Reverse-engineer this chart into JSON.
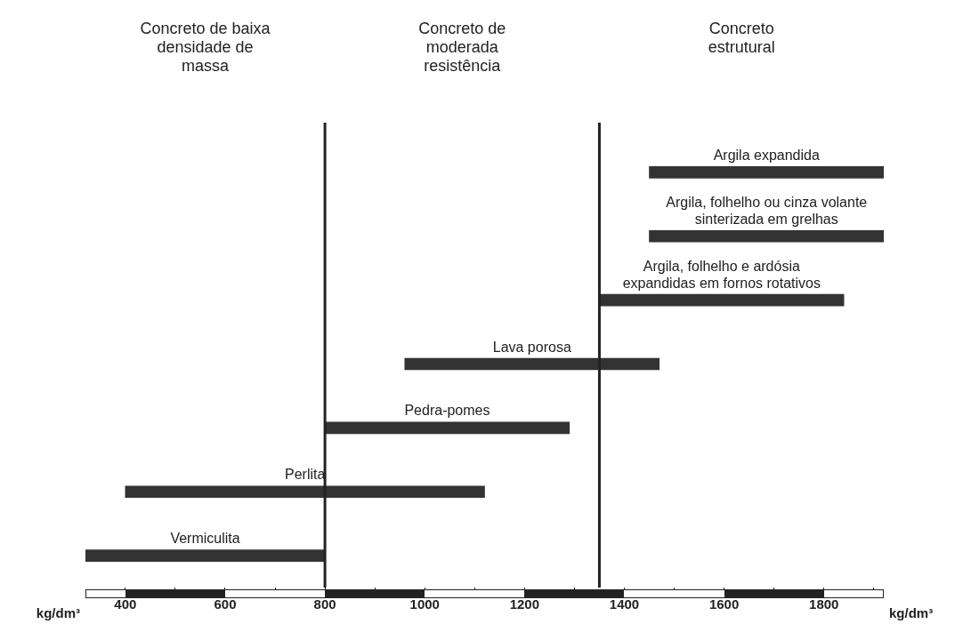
{
  "chart_data": {
    "type": "bar",
    "orientation": "horizontal",
    "xlabel": "kg/dm³",
    "categories": [
      "Argila expandida",
      "Argila, folhelho ou cinza volante sinterizada em grelhas",
      "Argila, folhelho e ardósia expandidas em fornos rotativos",
      "Lava porosa",
      "Pedra-pomes",
      "Perlita",
      "Vermiculita"
    ],
    "base": [
      1450,
      1450,
      1350,
      960,
      800,
      400,
      320
    ],
    "values": [
      470,
      470,
      490,
      510,
      490,
      720,
      480
    ],
    "color": "#333333",
    "xlim": [
      320,
      1920
    ],
    "xticks": [
      400,
      {
        "value": 500,
        "label": null
      },
      600,
      {
        "value": 700,
        "label": null
      },
      800,
      {
        "value": 900,
        "label": null
      },
      1000,
      {
        "value": 1100,
        "label": null
      },
      1200,
      {
        "value": 1300,
        "label": null
      },
      1400,
      {
        "value": 1500,
        "label": null
      },
      1600,
      {
        "value": 1700,
        "label": null
      },
      1800,
      {
        "value": 1900,
        "label": null
      }
    ],
    "tick_labels": "x",
    "grid": false,
    "legend": false,
    "ref_lines": [
      {
        "axis": "x",
        "value": 800,
        "color": "#222222"
      },
      {
        "axis": "x",
        "value": 1350,
        "color": "#222222"
      }
    ],
    "annotations": [
      "Concreto de baixa densidade de massa",
      "Concreto de moderada resistência",
      "Concreto estrutural"
    ]
  }
}
